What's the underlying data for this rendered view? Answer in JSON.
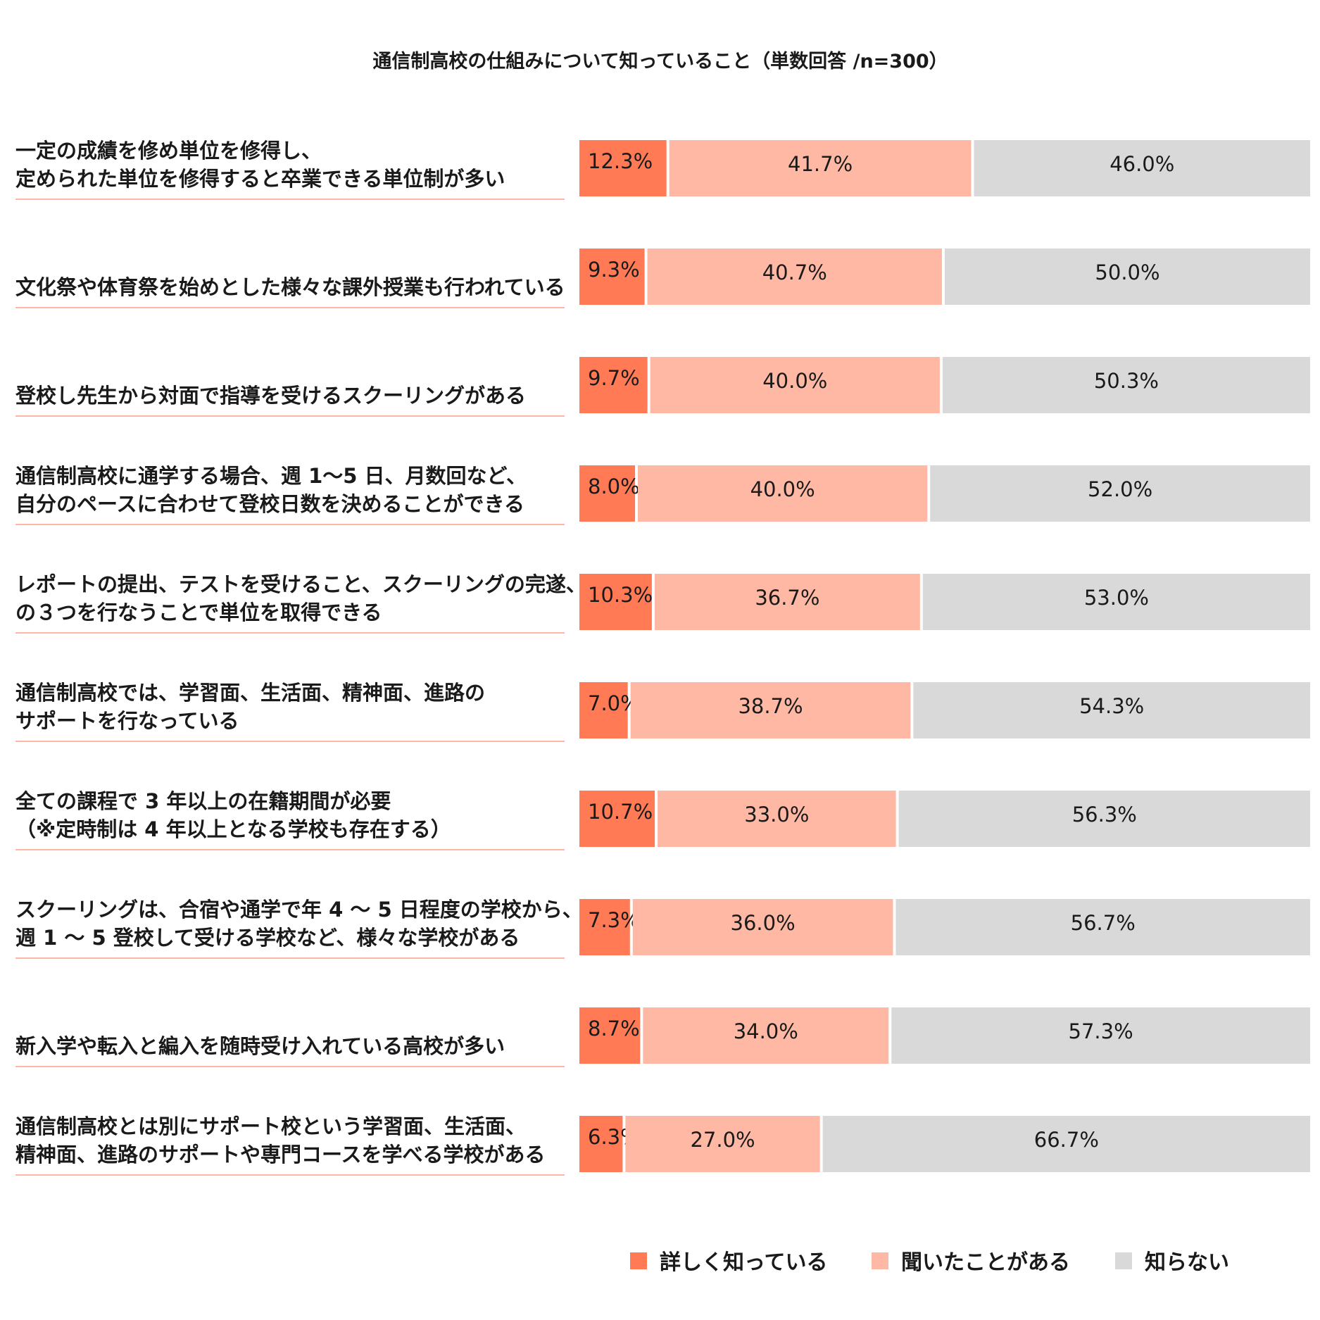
{
  "chart_data": {
    "type": "bar",
    "orientation": "horizontal",
    "stacked": true,
    "percent_stacked": true,
    "title": "通信制高校の仕組みについて知っていること（単数回答 /n=300）",
    "xlabel": "",
    "ylabel": "",
    "xlim": [
      0,
      100
    ],
    "legend_position": "bottom",
    "categories": [
      [
        "一定の成績を修め単位を修得し、",
        "定められた単位を修得すると卒業できる単位制が多い"
      ],
      [
        "文化祭や体育祭を始めとした様々な課外授業も行われている"
      ],
      [
        "登校し先生から対面で指導を受けるスクーリングがある"
      ],
      [
        "通信制高校に通学する場合、週 1〜5 日、月数回など、",
        "自分のペースに合わせて登校日数を決めることができる"
      ],
      [
        "レポートの提出、テストを受けること、スクーリングの完遂、",
        "の３つを行なうことで単位を取得できる"
      ],
      [
        "通信制高校では、学習面、生活面、精神面、進路の",
        "サポートを行なっている"
      ],
      [
        "全ての課程で 3 年以上の在籍期間が必要",
        "（※定時制は 4 年以上となる学校も存在する）"
      ],
      [
        "スクーリングは、合宿や通学で年 4 〜 5 日程度の学校から、",
        "週 1 〜 5 登校して受ける学校など、様々な学校がある"
      ],
      [
        "新入学や転入と編入を随時受け入れている高校が多い"
      ],
      [
        "通信制高校とは別にサポート校という学習面、生活面、",
        "精神面、進路のサポートや専門コースを学べる学校がある"
      ]
    ],
    "series": [
      {
        "name": "詳しく知っている",
        "color": "#ff7a55",
        "values": [
          12.3,
          9.3,
          9.7,
          8.0,
          10.3,
          7.0,
          10.7,
          7.3,
          8.7,
          6.3
        ],
        "labels": [
          "12.3%",
          "9.3%",
          "9.7%",
          "8.0%",
          "10.3%",
          "7.0%",
          "10.7%",
          "7.3%",
          "8.7%",
          "6.3%"
        ]
      },
      {
        "name": "聞いたことがある",
        "color": "#ffb8a3",
        "values": [
          41.7,
          40.7,
          40.0,
          40.0,
          36.7,
          38.7,
          33.0,
          36.0,
          34.0,
          27.0
        ],
        "labels": [
          "41.7%",
          "40.7%",
          "40.0%",
          "40.0%",
          "36.7%",
          "38.7%",
          "33.0%",
          "36.0%",
          "34.0%",
          "27.0%"
        ]
      },
      {
        "name": "知らない",
        "color": "#d9d9d9",
        "values": [
          46.0,
          50.0,
          50.3,
          52.0,
          53.0,
          54.3,
          56.3,
          56.7,
          57.3,
          66.7
        ],
        "labels": [
          "46.0%",
          "50.0%",
          "50.3%",
          "52.0%",
          "53.0%",
          "54.3%",
          "56.3%",
          "56.7%",
          "57.3%",
          "66.7%"
        ]
      }
    ],
    "separator_color": "#ff9f87"
  }
}
